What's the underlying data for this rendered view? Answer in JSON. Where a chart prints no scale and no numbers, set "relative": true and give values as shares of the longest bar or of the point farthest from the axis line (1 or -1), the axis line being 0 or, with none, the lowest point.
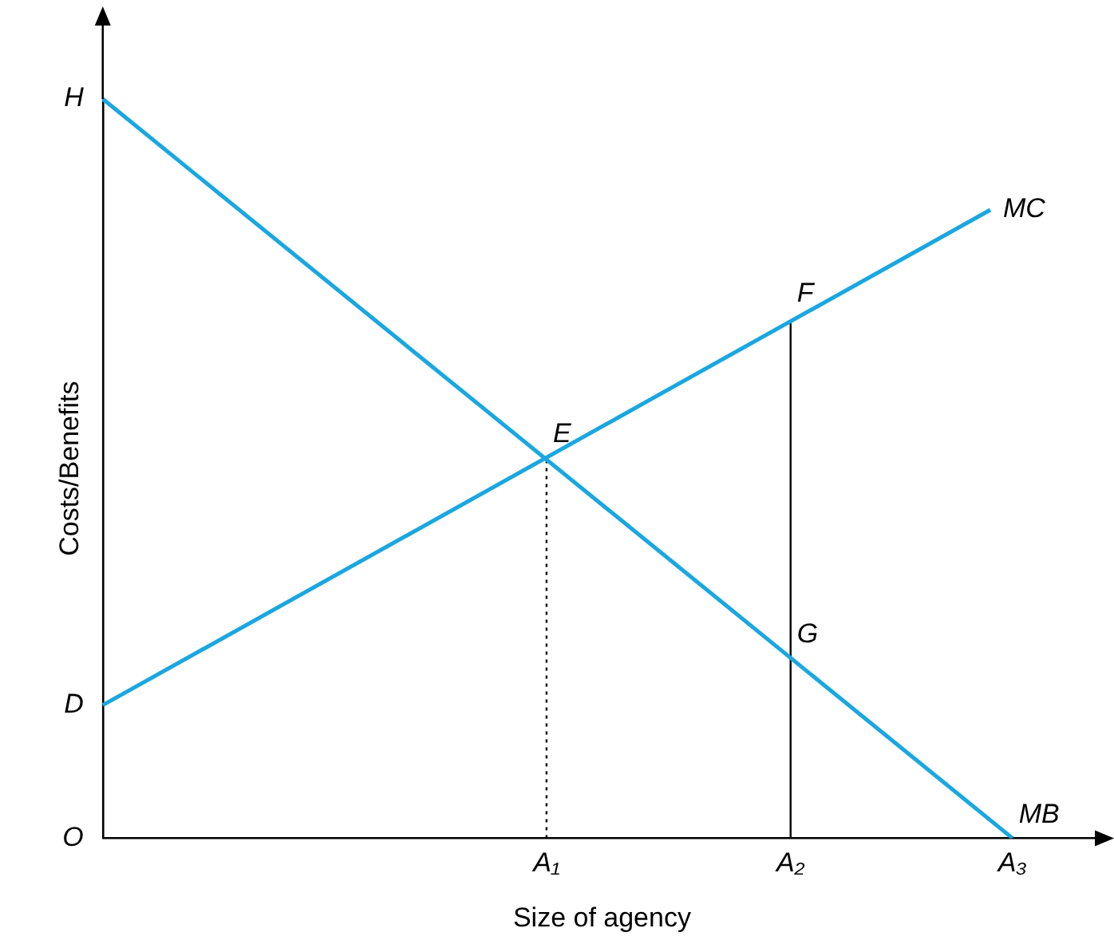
{
  "chart_data": {
    "type": "line",
    "relative": true,
    "xlabel": "Size of agency",
    "ylabel": "Costs/Benefits",
    "categories": [
      null,
      null,
      null,
      null,
      null,
      null,
      null,
      null,
      null,
      null,
      null,
      null,
      null,
      null,
      null,
      null,
      null,
      null,
      null,
      null,
      "A₁",
      null,
      null,
      null,
      null,
      null,
      null,
      null,
      null,
      null,
      null,
      "A₂",
      null,
      null,
      null,
      null,
      null,
      null,
      null,
      null,
      null,
      "A₃",
      null,
      null,
      null,
      null
    ],
    "series": [
      {
        "name": "MB",
        "color": "#1aa7e0",
        "values": [
          1,
          null,
          null,
          null,
          null,
          null,
          null,
          null,
          null,
          null,
          null,
          null,
          null,
          null,
          null,
          null,
          null,
          null,
          null,
          null,
          null,
          null,
          null,
          null,
          null,
          null,
          null,
          null,
          null,
          null,
          null,
          null,
          null,
          null,
          null,
          null,
          null,
          null,
          null,
          null,
          null,
          0,
          null,
          null,
          null,
          null
        ]
      },
      {
        "name": "MC",
        "color": "#1aa7e0",
        "values": [
          0.18,
          null,
          null,
          null,
          null,
          null,
          null,
          null,
          null,
          null,
          null,
          null,
          null,
          null,
          null,
          null,
          null,
          null,
          null,
          null,
          null,
          null,
          null,
          null,
          null,
          null,
          null,
          null,
          null,
          null,
          null,
          null,
          null,
          null,
          null,
          null,
          null,
          null,
          null,
          null,
          0.85,
          null,
          null,
          null,
          null,
          null
        ]
      },
      {
        "color": "#000000",
        "x": [
          "A₁",
          "A₁"
        ],
        "values": [
          0,
          0.51
        ],
        "line_style": "dotted"
      },
      {
        "color": "#000000",
        "x": [
          "A₂",
          "A₂"
        ],
        "values": [
          0,
          0.7
        ],
        "line_style": "solid"
      }
    ],
    "annotations": [
      "H",
      "D",
      "O",
      {
        "text": "E",
        "x": "A₁",
        "y": 0.51
      },
      {
        "text": "F",
        "x": "A₂",
        "y": 0.7
      },
      {
        "text": "G",
        "x": "A₂",
        "y": 0.24
      }
    ],
    "grid": false,
    "legend": false,
    "marker": "none"
  }
}
